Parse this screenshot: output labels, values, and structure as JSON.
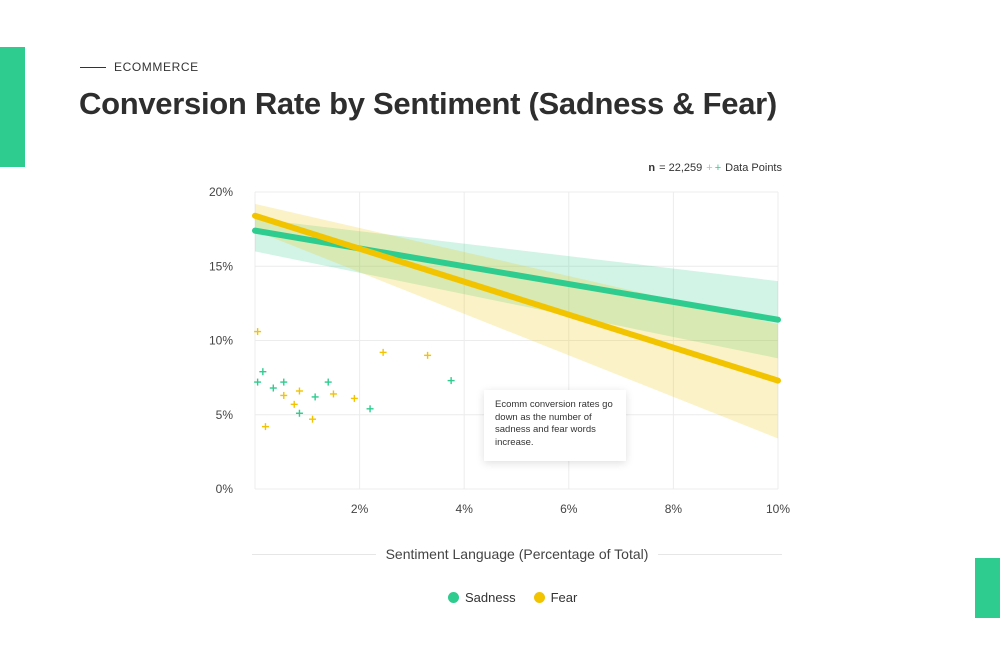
{
  "header": {
    "eyebrow": "ECOMMERCE",
    "title": "Conversion Rate by Sentiment (Sadness & Fear)"
  },
  "sample_note": {
    "n_label": "n",
    "n_value": "= 22,259",
    "points_label": "Data Points"
  },
  "annotation": "Ecomm conversion rates go down as the number of sadness and fear words increase.",
  "colors": {
    "accent": "#2ecc8f",
    "sadness": "#2ecc8f",
    "fear": "#f2c400",
    "grid": "#ececec"
  },
  "chart_data": {
    "type": "line",
    "xlabel": "Sentiment Language (Percentage of Total)",
    "ylabel": "",
    "xlim": [
      0,
      10
    ],
    "ylim": [
      0,
      20
    ],
    "x_ticks": [
      2,
      4,
      6,
      8,
      10
    ],
    "x_tick_labels": [
      "2%",
      "4%",
      "6%",
      "8%",
      "10%"
    ],
    "y_ticks": [
      0,
      5,
      10,
      15,
      20
    ],
    "y_tick_labels": [
      "0%",
      "5%",
      "10%",
      "15%",
      "20%"
    ],
    "grid": true,
    "legend_position": "bottom-center",
    "series": [
      {
        "name": "Sadness",
        "color": "#2ecc8f",
        "trend": {
          "x": [
            0,
            10
          ],
          "y": [
            17.4,
            11.4
          ]
        },
        "band": {
          "lower": [
            16.0,
            8.8
          ],
          "upper": [
            18.2,
            14.0
          ]
        },
        "points": [
          [
            0.05,
            7.2
          ],
          [
            0.15,
            7.9
          ],
          [
            0.35,
            6.8
          ],
          [
            0.55,
            7.2
          ],
          [
            0.85,
            5.1
          ],
          [
            1.15,
            6.2
          ],
          [
            1.4,
            7.2
          ],
          [
            2.2,
            5.4
          ],
          [
            3.75,
            7.3
          ]
        ]
      },
      {
        "name": "Fear",
        "color": "#f2c400",
        "trend": {
          "x": [
            0,
            10
          ],
          "y": [
            18.4,
            7.3
          ]
        },
        "band": {
          "lower": [
            17.4,
            3.4
          ],
          "upper": [
            19.2,
            11.1
          ]
        },
        "points": [
          [
            0.05,
            10.6
          ],
          [
            0.2,
            4.2
          ],
          [
            0.55,
            6.3
          ],
          [
            0.75,
            5.7
          ],
          [
            0.85,
            6.6
          ],
          [
            1.1,
            4.7
          ],
          [
            1.5,
            6.4
          ],
          [
            1.9,
            6.1
          ],
          [
            2.45,
            9.2
          ],
          [
            3.3,
            9.0
          ]
        ]
      }
    ]
  }
}
